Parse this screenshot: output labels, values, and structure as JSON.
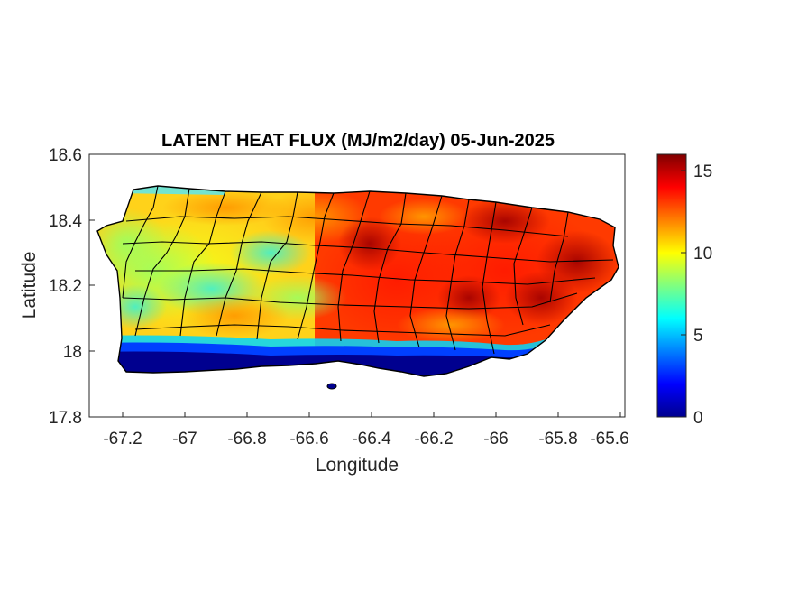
{
  "title": "LATENT HEAT FLUX (MJ/m2/day) 05-Jun-2025",
  "xlabel": "Longitude",
  "ylabel": "Latitude",
  "x_ticks": [
    "-67.2",
    "-67",
    "-66.8",
    "-66.6",
    "-66.4",
    "-66.2",
    "-66",
    "-65.8",
    "-65.6"
  ],
  "y_ticks": [
    "18.6",
    "18.4",
    "18.2",
    "18",
    "17.8"
  ],
  "colorbar_ticks": [
    "15",
    "10",
    "5",
    "0"
  ],
  "colormap": "jet",
  "colors": {
    "axis": "#262626",
    "boundary": "#000000",
    "sea": "#ffffff"
  },
  "chart_data": {
    "type": "heatmap",
    "title": "LATENT HEAT FLUX (MJ/m2/day) 05-Jun-2025",
    "xlabel": "Longitude",
    "ylabel": "Latitude",
    "xlim": [
      -67.3,
      -65.58
    ],
    "ylim": [
      17.8,
      18.6
    ],
    "clim": [
      0,
      16
    ],
    "x_ticks": [
      -67.2,
      -67,
      -66.8,
      -66.6,
      -66.4,
      -66.2,
      -66,
      -65.8,
      -65.6
    ],
    "y_ticks": [
      17.8,
      18.0,
      18.2,
      18.4,
      18.6
    ],
    "colorbar_ticks": [
      0,
      5,
      10,
      15
    ],
    "grid": false,
    "region": "Puerto Rico",
    "pattern": "low values (0-2) along south coast, moderate values (6-10) in west, high values (12-16) in central-east and northeast"
  }
}
